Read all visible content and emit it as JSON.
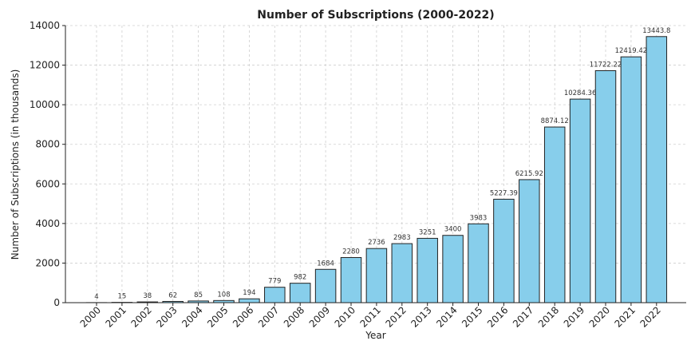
{
  "chart_data": {
    "type": "bar",
    "title": "Number of Subscriptions (2000-2022)",
    "xlabel": "Year",
    "ylabel": "Number of Subscriptions (in thousands)",
    "ylim": [
      0,
      14000
    ],
    "yticks": [
      0,
      2000,
      4000,
      6000,
      8000,
      10000,
      12000,
      14000
    ],
    "grid": true,
    "bar_color": "#87ceeb",
    "categories": [
      "2000",
      "2001",
      "2002",
      "2003",
      "2004",
      "2005",
      "2006",
      "2007",
      "2008",
      "2009",
      "2010",
      "2011",
      "2012",
      "2013",
      "2014",
      "2015",
      "2016",
      "2017",
      "2018",
      "2019",
      "2020",
      "2021",
      "2022"
    ],
    "values": [
      4,
      15,
      38,
      62,
      85,
      108,
      194,
      779,
      982,
      1684,
      2280,
      2736,
      2983,
      3251,
      3400,
      3983,
      5227.39,
      6215.92,
      8874.12,
      10284.36,
      11722.22,
      12419.42,
      13443.8
    ],
    "value_labels": [
      "4",
      "15",
      "38",
      "62",
      "85",
      "108",
      "194",
      "779",
      "982",
      "1684",
      "2280",
      "2736",
      "2983",
      "3251",
      "3400",
      "3983",
      "5227.39",
      "6215.92",
      "8874.12",
      "10284.36",
      "11722.22",
      "12419.42",
      "13443.8"
    ]
  }
}
